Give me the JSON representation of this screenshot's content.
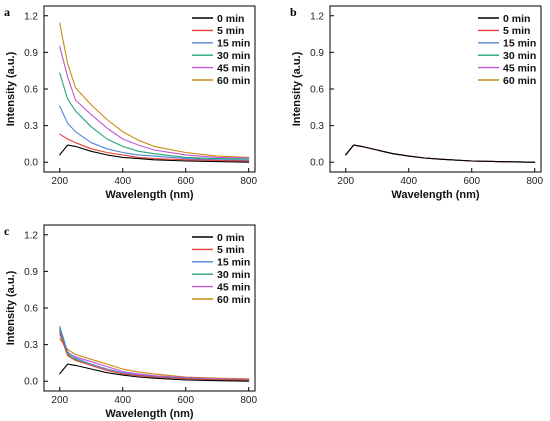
{
  "chart_data": [
    {
      "panel": "a",
      "type": "line",
      "xlabel": "Wavelength (nm)",
      "ylabel": "Intensity (a.u.)",
      "xlim": [
        150,
        820
      ],
      "ylim": [
        -0.08,
        1.28
      ],
      "xticks": [
        "200",
        "400",
        "600",
        "800"
      ],
      "yticks": [
        "0.0",
        "0.3",
        "0.6",
        "0.9",
        "1.2"
      ],
      "legend_position": "top-right",
      "x": [
        200,
        225,
        250,
        300,
        350,
        400,
        450,
        500,
        600,
        700,
        800
      ],
      "series": [
        {
          "name": "0 min",
          "color": "#000000",
          "values": [
            0.06,
            0.14,
            0.13,
            0.09,
            0.06,
            0.04,
            0.03,
            0.02,
            0.01,
            0.005,
            0.0
          ]
        },
        {
          "name": "5 min",
          "color": "#e8413a",
          "values": [
            0.23,
            0.19,
            0.16,
            0.11,
            0.08,
            0.06,
            0.04,
            0.03,
            0.02,
            0.015,
            0.01
          ]
        },
        {
          "name": "15 min",
          "color": "#4f86d9",
          "values": [
            0.46,
            0.32,
            0.25,
            0.16,
            0.11,
            0.08,
            0.06,
            0.05,
            0.03,
            0.02,
            0.015
          ]
        },
        {
          "name": "30 min",
          "color": "#26a37a",
          "values": [
            0.73,
            0.52,
            0.42,
            0.29,
            0.19,
            0.13,
            0.09,
            0.07,
            0.04,
            0.03,
            0.025
          ]
        },
        {
          "name": "45 min",
          "color": "#c254d6",
          "values": [
            0.95,
            0.7,
            0.51,
            0.39,
            0.28,
            0.19,
            0.14,
            0.1,
            0.06,
            0.04,
            0.035
          ]
        },
        {
          "name": "60 min",
          "color": "#c98a10",
          "values": [
            1.14,
            0.81,
            0.61,
            0.47,
            0.35,
            0.25,
            0.18,
            0.13,
            0.08,
            0.05,
            0.04
          ]
        }
      ]
    },
    {
      "panel": "b",
      "type": "line",
      "xlabel": "Wavelength (nm)",
      "ylabel": "Intensity (a.u.)",
      "xlim": [
        150,
        820
      ],
      "ylim": [
        -0.08,
        1.28
      ],
      "xticks": [
        "200",
        "400",
        "600",
        "800"
      ],
      "yticks": [
        "0.0",
        "0.3",
        "0.6",
        "0.9",
        "1.2"
      ],
      "legend_position": "top-right",
      "x": [
        200,
        225,
        250,
        300,
        350,
        400,
        450,
        500,
        600,
        700,
        800
      ],
      "series": [
        {
          "name": "0 min",
          "color": "#000000",
          "values": [
            0.06,
            0.14,
            0.13,
            0.1,
            0.07,
            0.05,
            0.035,
            0.025,
            0.01,
            0.004,
            0.0
          ]
        },
        {
          "name": "5 min",
          "color": "#e8413a",
          "values": [
            0.06,
            0.14,
            0.13,
            0.1,
            0.07,
            0.05,
            0.035,
            0.025,
            0.01,
            0.004,
            0.0
          ]
        },
        {
          "name": "15 min",
          "color": "#4f86d9",
          "values": [
            0.06,
            0.14,
            0.13,
            0.1,
            0.07,
            0.05,
            0.035,
            0.025,
            0.01,
            0.004,
            0.0
          ]
        },
        {
          "name": "30 min",
          "color": "#26a37a",
          "values": [
            0.06,
            0.14,
            0.13,
            0.1,
            0.07,
            0.05,
            0.035,
            0.025,
            0.01,
            0.004,
            0.0
          ]
        },
        {
          "name": "45 min",
          "color": "#c254d6",
          "values": [
            0.06,
            0.14,
            0.13,
            0.1,
            0.07,
            0.05,
            0.035,
            0.025,
            0.01,
            0.004,
            0.0
          ]
        },
        {
          "name": "60 min",
          "color": "#c98a10",
          "values": [
            0.06,
            0.14,
            0.13,
            0.1,
            0.07,
            0.05,
            0.035,
            0.025,
            0.01,
            0.004,
            0.0
          ]
        }
      ]
    },
    {
      "panel": "c",
      "type": "line",
      "xlabel": "Wavelength (nm)",
      "ylabel": "Intensity (a.u.)",
      "xlim": [
        150,
        820
      ],
      "ylim": [
        -0.08,
        1.28
      ],
      "xticks": [
        "200",
        "400",
        "600",
        "800"
      ],
      "yticks": [
        "0.0",
        "0.3",
        "0.6",
        "0.9",
        "1.2"
      ],
      "legend_position": "top-right",
      "x": [
        200,
        225,
        250,
        300,
        350,
        400,
        450,
        500,
        600,
        700,
        800
      ],
      "series": [
        {
          "name": "0 min",
          "color": "#000000",
          "values": [
            0.06,
            0.14,
            0.13,
            0.1,
            0.07,
            0.05,
            0.035,
            0.025,
            0.01,
            0.004,
            0.0
          ]
        },
        {
          "name": "5 min",
          "color": "#e8413a",
          "values": [
            0.39,
            0.21,
            0.17,
            0.13,
            0.09,
            0.06,
            0.045,
            0.035,
            0.02,
            0.012,
            0.01
          ]
        },
        {
          "name": "15 min",
          "color": "#4f86d9",
          "values": [
            0.45,
            0.24,
            0.19,
            0.14,
            0.1,
            0.07,
            0.05,
            0.04,
            0.025,
            0.015,
            0.012
          ]
        },
        {
          "name": "30 min",
          "color": "#26a37a",
          "values": [
            0.43,
            0.22,
            0.18,
            0.13,
            0.09,
            0.06,
            0.045,
            0.035,
            0.02,
            0.012,
            0.01
          ]
        },
        {
          "name": "45 min",
          "color": "#c254d6",
          "values": [
            0.41,
            0.23,
            0.2,
            0.16,
            0.12,
            0.08,
            0.06,
            0.045,
            0.03,
            0.02,
            0.015
          ]
        },
        {
          "name": "60 min",
          "color": "#c98a10",
          "values": [
            0.35,
            0.26,
            0.22,
            0.18,
            0.14,
            0.1,
            0.075,
            0.06,
            0.035,
            0.025,
            0.02
          ]
        }
      ]
    }
  ]
}
